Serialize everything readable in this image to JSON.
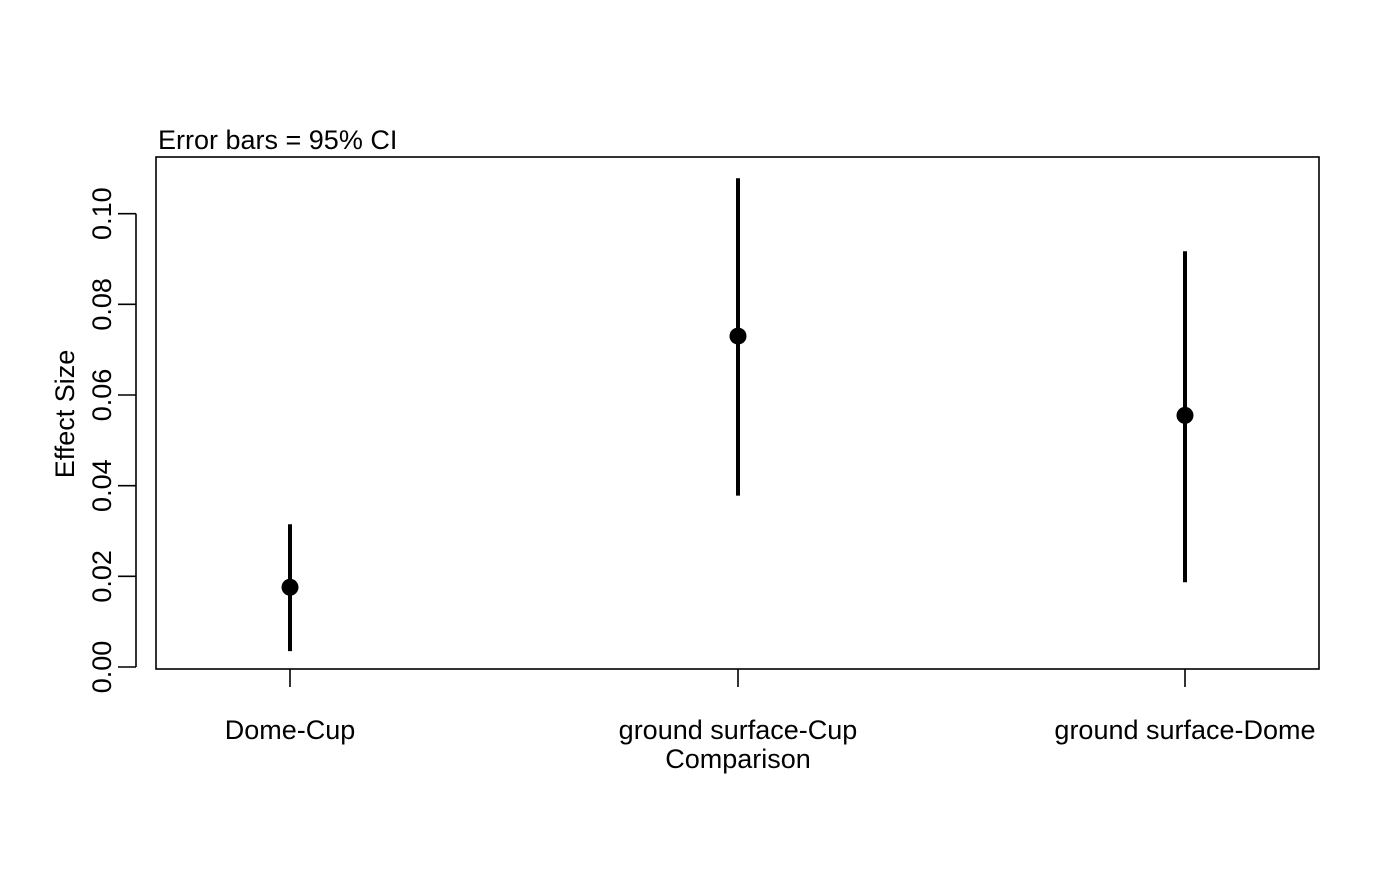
{
  "chart_data": {
    "type": "scatter",
    "subtitle": "Error bars = 95% CI",
    "xlabel": "Comparison",
    "ylabel": "Effect Size",
    "categories": [
      "Dome-Cup",
      "ground surface-Cup",
      "ground surface-Dome"
    ],
    "points": [
      {
        "category": "Dome-Cup",
        "estimate": 0.0176,
        "ci_lower": 0.0035,
        "ci_upper": 0.0315
      },
      {
        "category": "ground surface-Cup",
        "estimate": 0.073,
        "ci_lower": 0.0378,
        "ci_upper": 0.1078
      },
      {
        "category": "ground surface-Dome",
        "estimate": 0.0555,
        "ci_lower": 0.0187,
        "ci_upper": 0.0917
      }
    ],
    "yticks": [
      0.0,
      0.02,
      0.04,
      0.06,
      0.08,
      0.1
    ],
    "ytick_labels": [
      "0.00",
      "0.02",
      "0.04",
      "0.06",
      "0.08",
      "0.10"
    ],
    "ylim": [
      0.0,
      0.1125
    ],
    "grid": false,
    "legend": "none",
    "colors": {
      "points": "#000000",
      "error_bars": "#000000",
      "axes": "#000000"
    }
  }
}
